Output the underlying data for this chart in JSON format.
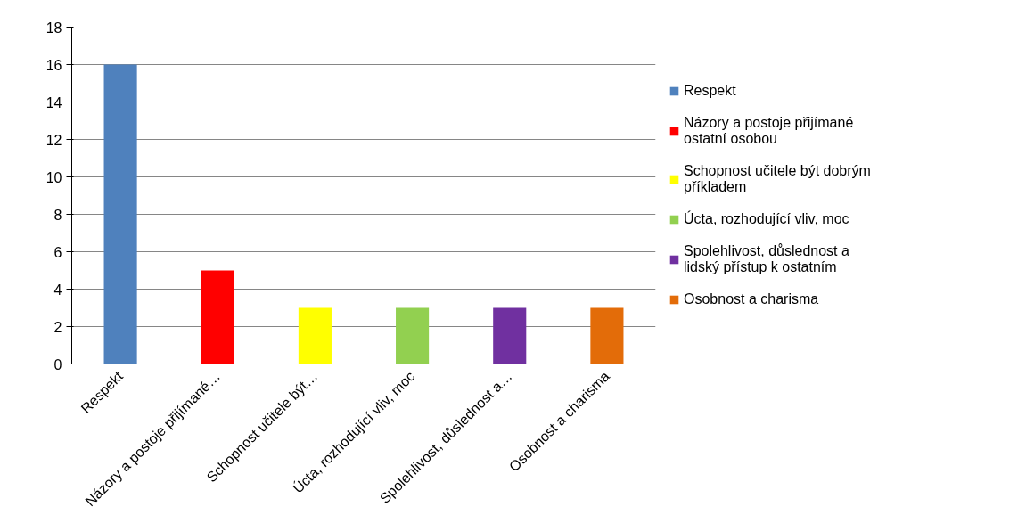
{
  "chart_data": {
    "type": "bar",
    "categories": [
      "Respekt",
      "Názory a postoje přijímané…",
      "Schopnost učitele být…",
      "Úcta, rozhodující vliv, moc",
      "Spolehlivost, důslednost a…",
      "Osobnost a charisma"
    ],
    "series": [
      {
        "name": "Respekt",
        "color": "#4f81bd",
        "values": [
          16,
          null,
          null,
          null,
          null,
          null
        ]
      },
      {
        "name": "Názory a postoje přijímané ostatní osobou",
        "color": "#ff0000",
        "values": [
          null,
          5,
          null,
          null,
          null,
          null
        ]
      },
      {
        "name": "Schopnost učitele být dobrým příkladem",
        "color": "#ffff00",
        "values": [
          null,
          null,
          3,
          null,
          null,
          null
        ]
      },
      {
        "name": "Úcta, rozhodující vliv, moc",
        "color": "#92d050",
        "values": [
          null,
          null,
          null,
          3,
          null,
          null
        ]
      },
      {
        "name": "Spolehlivost, důslednost a lidský přístup k ostatním",
        "color": "#7030a0",
        "values": [
          null,
          null,
          null,
          null,
          3,
          null
        ]
      },
      {
        "name": "Osobnost a charisma",
        "color": "#e36c09",
        "values": [
          null,
          null,
          null,
          null,
          null,
          3
        ]
      }
    ],
    "ylim": [
      0,
      18
    ],
    "yticks": [
      0,
      2,
      4,
      6,
      8,
      10,
      12,
      14,
      16,
      18
    ],
    "grid": "y",
    "legend": "right"
  }
}
